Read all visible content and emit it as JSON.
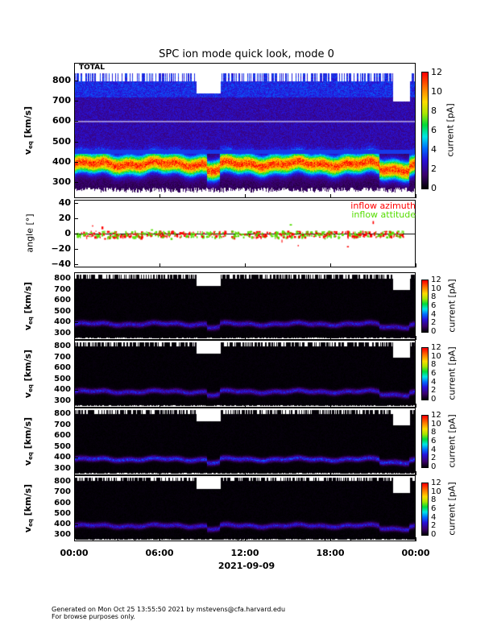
{
  "chart_data": {
    "type": "heatmap",
    "title": "SPC ion mode quick look, mode 0",
    "xlabel": "2021-09-09",
    "x_ticks": [
      "00:00",
      "06:00",
      "12:00",
      "18:00",
      "00:00"
    ],
    "panels": [
      {
        "name": "TOTAL",
        "label": "TOTAL",
        "ylabel": "v_eq [km/s]",
        "y_ticks": [
          "800",
          "700",
          "600",
          "500",
          "400",
          "300"
        ],
        "ylim": [
          220,
          888
        ],
        "colorbar": {
          "label": "current [pA]",
          "ticks": [
            "12",
            "10",
            "8",
            "6",
            "4",
            "2",
            "0"
          ],
          "range": [
            0,
            12
          ]
        },
        "core_velocity_kms": 380,
        "peak_current_pA": 10
      },
      {
        "name": "angle",
        "ylabel": "angle [°]",
        "y_ticks": [
          "40",
          "20",
          "0",
          "−20",
          "−40"
        ],
        "ylim": [
          -44,
          44
        ],
        "series": [
          {
            "name": "inflow azimuth",
            "color": "#ff0000"
          },
          {
            "name": "inflow attitude",
            "color": "#55dd00"
          }
        ]
      },
      {
        "name": "sensor-1",
        "ylabel": "v_eq [km/s]",
        "y_ticks": [
          "800",
          "700",
          "600",
          "500",
          "400",
          "300"
        ],
        "ylim": [
          240,
          862
        ],
        "colorbar": {
          "label": "current [pA]",
          "ticks": [
            "12",
            "10",
            "8",
            "6",
            "4",
            "2",
            "0"
          ],
          "range": [
            0,
            12
          ]
        },
        "core_velocity_kms": 390,
        "peak_current_pA": 3
      },
      {
        "name": "sensor-2",
        "ylabel": "v_eq [km/s]",
        "y_ticks": [
          "800",
          "700",
          "600",
          "500",
          "400",
          "300"
        ],
        "ylim": [
          240,
          862
        ],
        "colorbar": {
          "label": "current [pA]",
          "ticks": [
            "12",
            "10",
            "8",
            "6",
            "4",
            "2",
            "0"
          ],
          "range": [
            0,
            12
          ]
        },
        "core_velocity_kms": 390,
        "peak_current_pA": 3
      },
      {
        "name": "sensor-3",
        "ylabel": "v_eq [km/s]",
        "y_ticks": [
          "800",
          "700",
          "600",
          "500",
          "400",
          "300"
        ],
        "ylim": [
          240,
          862
        ],
        "colorbar": {
          "label": "current [pA]",
          "ticks": [
            "12",
            "10",
            "8",
            "6",
            "4",
            "2",
            "0"
          ],
          "range": [
            0,
            12
          ]
        },
        "core_velocity_kms": 390,
        "peak_current_pA": 3.5
      },
      {
        "name": "sensor-4",
        "ylabel": "v_eq [km/s]",
        "y_ticks": [
          "800",
          "700",
          "600",
          "500",
          "400",
          "300"
        ],
        "ylim": [
          240,
          862
        ],
        "colorbar": {
          "label": "current [pA]",
          "ticks": [
            "12",
            "10",
            "8",
            "6",
            "4",
            "2",
            "0"
          ],
          "range": [
            0,
            12
          ]
        },
        "core_velocity_kms": 390,
        "peak_current_pA": 3
      }
    ]
  },
  "labels": {
    "veq": "v",
    "veq_sub": "eq",
    "veq_unit": " [km/s]",
    "angle": "angle [°]",
    "current": "current [pA]"
  },
  "footer": {
    "line1": "Generated on Mon Oct 25 13:55:50 2021 by mstevens@cfa.harvard.edu",
    "line2": "For browse purposes only."
  }
}
